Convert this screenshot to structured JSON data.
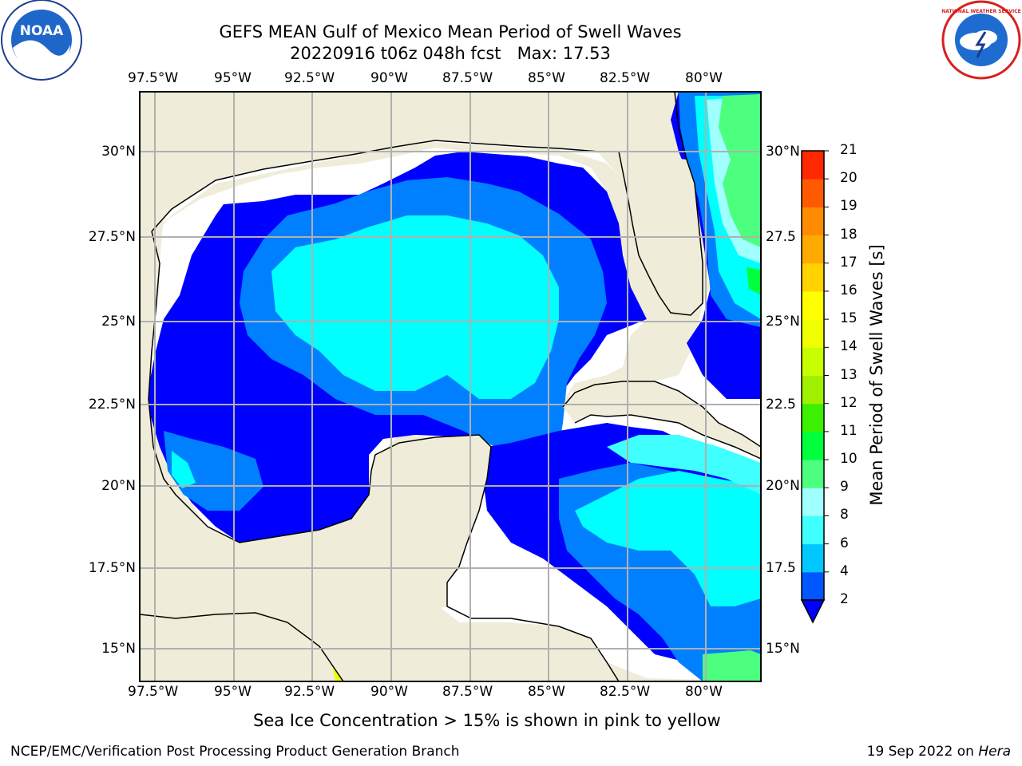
{
  "header": {
    "title_line1": "GEFS MEAN Gulf of Mexico Mean Period of Swell Waves",
    "title_line2": "20220916 t06z 048h fcst   Max: 17.53"
  },
  "logos": {
    "left": "NOAA",
    "right_text": "NATIONAL WEATHER SERVICE"
  },
  "map": {
    "lon_ticks": [
      "97.5°W",
      "95°W",
      "92.5°W",
      "90°W",
      "87.5°W",
      "85°W",
      "82.5°W",
      "80°W"
    ],
    "lat_ticks_left": [
      "30°N",
      "27.5°N",
      "25°N",
      "22.5°N",
      "20°N",
      "17.5°N",
      "15°N"
    ],
    "lat_ticks_right": [
      "30°N",
      "27.5",
      "25°N",
      "22.5",
      "20°N",
      "17.5",
      "15°N"
    ],
    "colors": {
      "land": "#efedd9",
      "c2": "#0000ff",
      "c4": "#0080ff",
      "c6": "#00ffff",
      "c8": "#3fffff",
      "c9": "#a0ffff",
      "c10": "#4dff7f",
      "grid": "#b0b0b0"
    }
  },
  "colorbar": {
    "label": "Mean Period of Swell Waves [s]",
    "ticks": [
      "2",
      "4",
      "6",
      "8",
      "9",
      "10",
      "11",
      "12",
      "13",
      "14",
      "15",
      "16",
      "17",
      "18",
      "19",
      "20",
      "21"
    ],
    "colors": [
      "#0056ff",
      "#00c8ff",
      "#3fffff",
      "#a0ffff",
      "#4dff7f",
      "#00ff3c",
      "#3cf000",
      "#a0f000",
      "#c8ff00",
      "#f0ff00",
      "#ffff00",
      "#ffd200",
      "#ffaa00",
      "#ff8c00",
      "#ff5a00",
      "#ff2800",
      "#ff0000"
    ]
  },
  "footer": {
    "note": "Sea Ice Concentration > 15% is shown in pink to yellow",
    "left": "NCEP/EMC/Verification Post Processing Product Generation Branch",
    "right_prefix": "19 Sep 2022 on ",
    "right_host": "Hera"
  }
}
